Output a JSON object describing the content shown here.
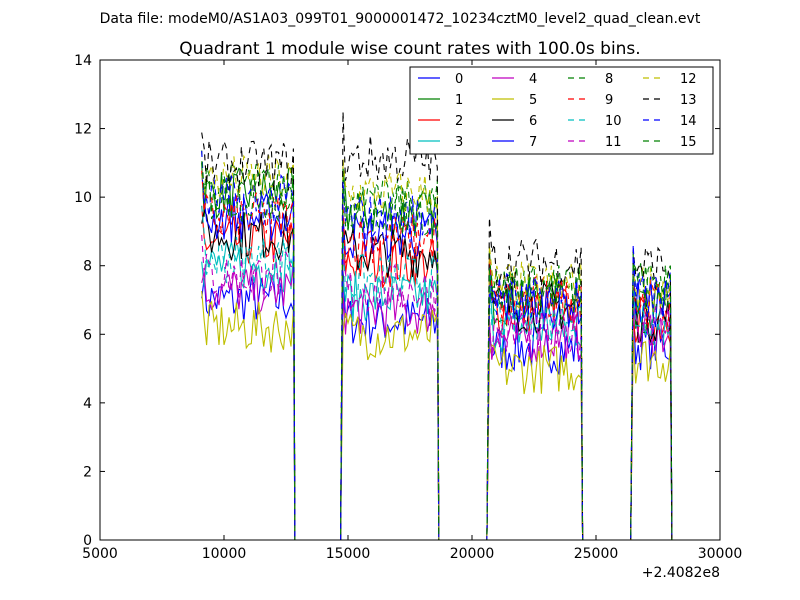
{
  "figure": {
    "suptitle": "Data file: modeM0/AS1A03_099T01_9000001472_10234cztM0_level2_quad_clean.evt"
  },
  "chart_data": {
    "type": "line",
    "title": "Quadrant 1 module wise count rates with 100.0s bins.",
    "xlabel": "",
    "ylabel": "",
    "xlim": [
      5000,
      30000
    ],
    "ylim": [
      0,
      14
    ],
    "x_offset_label": "+2.4082e8",
    "xticks": [
      5000,
      10000,
      15000,
      20000,
      25000,
      30000
    ],
    "yticks": [
      0,
      2,
      4,
      6,
      8,
      10,
      12,
      14
    ],
    "grid": false,
    "legend_placement": "top-right",
    "legend_columns": 4,
    "segments": [
      {
        "x": [
          9100,
          12800
        ],
        "levels": {
          "0": 7.0,
          "1": 10.1,
          "2": 8.7,
          "3": 8.0,
          "4": 7.3,
          "5": 6.2,
          "6": 8.9,
          "7": 9.4,
          "8": 10.3,
          "9": 9.4,
          "10": 8.2,
          "11": 7.7,
          "12": 10.5,
          "13": 10.9,
          "14": 9.9,
          "15": 10.0
        }
      },
      {
        "x": [
          14800,
          18600
        ],
        "levels": {
          "0": 6.4,
          "1": 9.5,
          "2": 8.1,
          "3": 7.1,
          "4": 6.7,
          "5": 6.0,
          "6": 8.4,
          "7": 8.9,
          "8": 9.8,
          "9": 8.8,
          "10": 7.6,
          "11": 7.3,
          "12": 10.1,
          "13": 11.1,
          "14": 9.4,
          "15": 9.6
        }
      },
      {
        "x": [
          20700,
          24400
        ],
        "levels": {
          "0": 5.6,
          "1": 7.0,
          "2": 6.7,
          "3": 6.2,
          "4": 5.9,
          "5": 5.0,
          "6": 6.8,
          "7": 6.9,
          "8": 7.4,
          "9": 7.0,
          "10": 6.5,
          "11": 6.0,
          "12": 7.4,
          "13": 8.1,
          "14": 7.1,
          "15": 7.3
        }
      },
      {
        "x": [
          26500,
          28000
        ],
        "levels": {
          "0": 5.7,
          "1": 6.8,
          "2": 6.4,
          "3": 6.3,
          "4": 6.1,
          "5": 5.3,
          "6": 6.5,
          "7": 6.9,
          "8": 7.3,
          "9": 6.9,
          "10": 6.6,
          "11": 6.3,
          "12": 7.4,
          "13": 8.0,
          "14": 7.1,
          "15": 7.4
        }
      }
    ],
    "series": [
      {
        "name": "0",
        "color": "#0000ff",
        "linestyle": "solid"
      },
      {
        "name": "1",
        "color": "#008000",
        "linestyle": "solid"
      },
      {
        "name": "2",
        "color": "#ff0000",
        "linestyle": "solid"
      },
      {
        "name": "3",
        "color": "#00bfbf",
        "linestyle": "solid"
      },
      {
        "name": "4",
        "color": "#bf00bf",
        "linestyle": "solid"
      },
      {
        "name": "5",
        "color": "#bfbf00",
        "linestyle": "solid"
      },
      {
        "name": "6",
        "color": "#000000",
        "linestyle": "solid"
      },
      {
        "name": "7",
        "color": "#0000ff",
        "linestyle": "solid"
      },
      {
        "name": "8",
        "color": "#008000",
        "linestyle": "dashed"
      },
      {
        "name": "9",
        "color": "#ff0000",
        "linestyle": "dashed"
      },
      {
        "name": "10",
        "color": "#00bfbf",
        "linestyle": "dashed"
      },
      {
        "name": "11",
        "color": "#bf00bf",
        "linestyle": "dashed"
      },
      {
        "name": "12",
        "color": "#bfbf00",
        "linestyle": "dashed"
      },
      {
        "name": "13",
        "color": "#000000",
        "linestyle": "dashed"
      },
      {
        "name": "14",
        "color": "#0000ff",
        "linestyle": "dashed"
      },
      {
        "name": "15",
        "color": "#008000",
        "linestyle": "dashed"
      }
    ]
  }
}
